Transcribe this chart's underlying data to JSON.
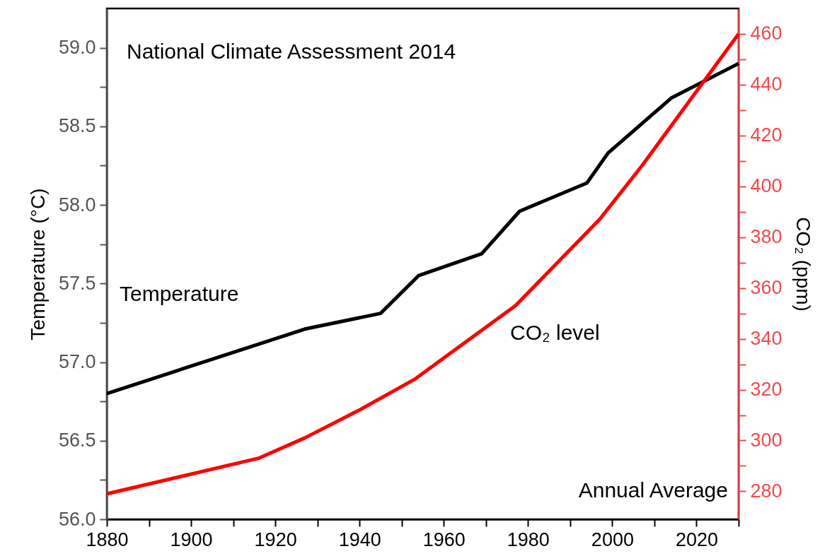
{
  "chart_data": {
    "type": "line",
    "annotations": [
      "National Climate Assessment 2014",
      "Annual Average"
    ],
    "ylabel": "Temperature (°C)",
    "y2label": "CO₂ (ppm)",
    "series": [
      {
        "name": "Temperature",
        "color": "#000000",
        "x": [
          1880,
          1927,
          1945,
          1954,
          1969,
          1978,
          1994,
          1999,
          2014,
          2030
        ],
        "values": [
          56.8,
          57.21,
          57.31,
          57.55,
          57.69,
          57.96,
          58.14,
          58.33,
          58.68,
          58.9
        ]
      },
      {
        "name": "CO₂ level",
        "color": "#ff0000",
        "axis": "y2",
        "x": [
          1880,
          1916,
          1927,
          1940,
          1953,
          1977,
          1997,
          2007,
          2030
        ],
        "values": [
          279,
          293,
          301,
          312,
          324,
          353,
          387,
          408,
          460
        ]
      }
    ],
    "xlim": [
      1880,
      2030
    ],
    "xticks": [
      1880,
      {
        "value": 1890,
        "label": null
      },
      1900,
      {
        "value": 1910,
        "label": null
      },
      1920,
      {
        "value": 1930,
        "label": null
      },
      1940,
      {
        "value": 1950,
        "label": null
      },
      1960,
      {
        "value": 1970,
        "label": null
      },
      1980,
      {
        "value": 1990,
        "label": null
      },
      2000,
      {
        "value": 2010,
        "label": null
      },
      2020,
      {
        "value": 2030,
        "label": null
      }
    ],
    "ylim": [
      56,
      59.25
    ],
    "yticks": [
      {
        "value": 56,
        "label": "56.0"
      },
      {
        "value": 56.25,
        "label": null
      },
      {
        "value": 56.5,
        "label": "56.5"
      },
      {
        "value": 56.75,
        "label": null
      },
      {
        "value": 57,
        "label": "57.0"
      },
      {
        "value": 57.25,
        "label": null
      },
      {
        "value": 57.5,
        "label": "57.5"
      },
      {
        "value": 57.75,
        "label": null
      },
      {
        "value": 58,
        "label": "58.0"
      },
      {
        "value": 58.25,
        "label": null
      },
      {
        "value": 58.5,
        "label": "58.5"
      },
      {
        "value": 58.75,
        "label": null
      },
      {
        "value": 59,
        "label": "59.0"
      }
    ],
    "y2lim": [
      269,
      470
    ],
    "y2ticks": [
      280,
      {
        "value": 290,
        "label": null
      },
      300,
      {
        "value": 310,
        "label": null
      },
      320,
      {
        "value": 330,
        "label": null
      },
      340,
      {
        "value": 350,
        "label": null
      },
      360,
      {
        "value": 370,
        "label": null
      },
      380,
      {
        "value": 390,
        "label": null
      },
      400,
      {
        "value": 410,
        "label": null
      },
      420,
      {
        "value": 430,
        "label": null
      },
      440,
      {
        "value": 450,
        "label": null
      },
      460
    ],
    "grid": false,
    "legend": false,
    "marker": "none",
    "line_style": "solid"
  }
}
